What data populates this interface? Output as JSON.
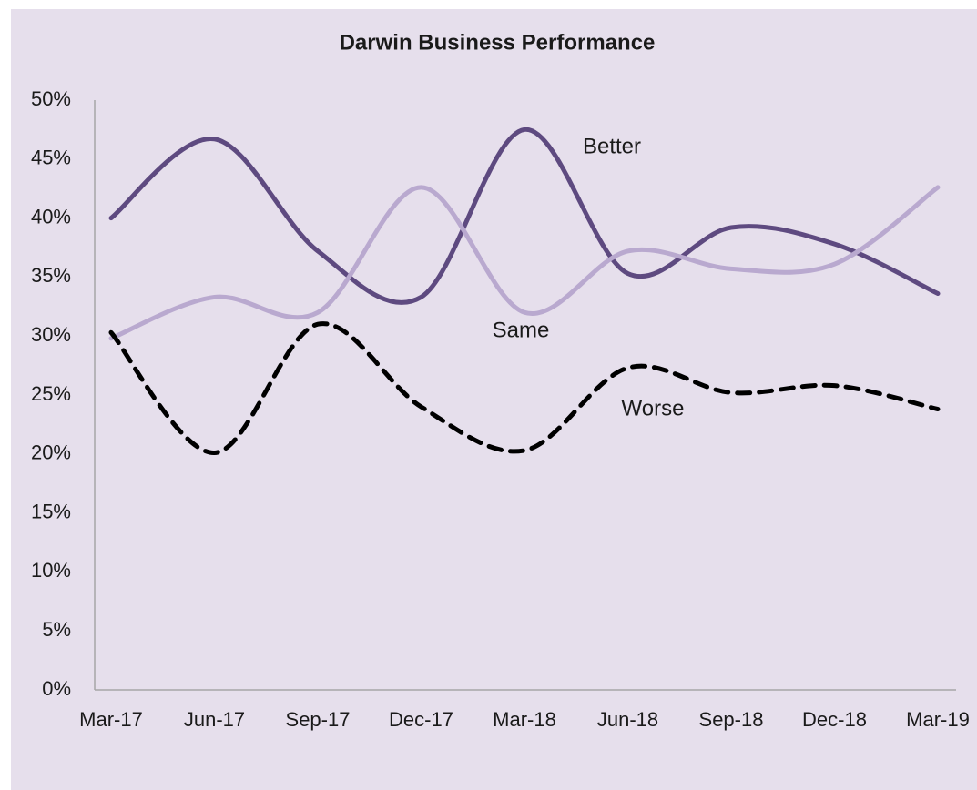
{
  "chart_data": {
    "type": "line",
    "title": "Darwin Business Performance",
    "categories": [
      "Mar-17",
      "Jun-17",
      "Sep-17",
      "Dec-17",
      "Mar-18",
      "Jun-18",
      "Sep-18",
      "Dec-18",
      "Mar-19"
    ],
    "series": [
      {
        "name": "Better",
        "color": "#5e4a80",
        "line_style": "solid",
        "values": [
          40.0,
          46.7,
          37.2,
          33.3,
          47.5,
          35.3,
          39.2,
          37.8,
          33.6
        ]
      },
      {
        "name": "Same",
        "color": "#b9a9cf",
        "line_style": "solid",
        "values": [
          29.8,
          33.3,
          32.0,
          42.6,
          32.0,
          37.2,
          35.7,
          36.1,
          42.6
        ]
      },
      {
        "name": "Worse",
        "color": "#000000",
        "line_style": "dashed",
        "values": [
          30.3,
          20.1,
          31.0,
          24.0,
          20.3,
          27.3,
          25.2,
          25.8,
          23.8
        ]
      }
    ],
    "ylim": [
      0,
      50
    ],
    "yticks": [
      {
        "value": 0,
        "label": "0%"
      },
      {
        "value": 5,
        "label": "5%"
      },
      {
        "value": 10,
        "label": "10%"
      },
      {
        "value": 15,
        "label": "15%"
      },
      {
        "value": 20,
        "label": "20%"
      },
      {
        "value": 25,
        "label": "25%"
      },
      {
        "value": 30,
        "label": "30%"
      },
      {
        "value": 35,
        "label": "35%"
      },
      {
        "value": 40,
        "label": "40%"
      },
      {
        "value": 45,
        "label": "45%"
      },
      {
        "value": 50,
        "label": "50%"
      }
    ],
    "smooth": true,
    "grid": false
  }
}
